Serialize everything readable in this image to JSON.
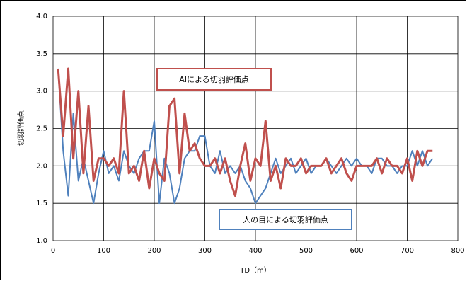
{
  "chart_data": {
    "type": "line",
    "x_label": "TD（m）",
    "y_label": "切羽評価点",
    "xlim": [
      0,
      800
    ],
    "xticks": [
      0,
      100,
      200,
      300,
      400,
      500,
      600,
      700,
      800
    ],
    "ylim": [
      1.0,
      4.0
    ],
    "yticks": [
      {
        "value": 1.0,
        "label": "1.0"
      },
      1.5,
      {
        "value": 2.0,
        "label": "2.0"
      },
      2.5,
      {
        "value": 3.0,
        "label": "3.0"
      },
      3.5,
      {
        "value": 4.0,
        "label": "4.0"
      }
    ],
    "grid": true,
    "x": [
      10,
      20,
      30,
      40,
      50,
      60,
      70,
      80,
      90,
      100,
      110,
      120,
      130,
      140,
      150,
      160,
      170,
      180,
      190,
      200,
      210,
      220,
      230,
      240,
      250,
      260,
      270,
      280,
      290,
      300,
      310,
      320,
      330,
      340,
      350,
      360,
      370,
      380,
      390,
      400,
      410,
      420,
      430,
      440,
      450,
      460,
      470,
      480,
      490,
      500,
      510,
      520,
      530,
      540,
      550,
      560,
      570,
      580,
      590,
      600,
      610,
      620,
      630,
      640,
      650,
      660,
      670,
      680,
      690,
      700,
      710,
      720,
      730,
      740,
      750
    ],
    "series": [
      {
        "color": "#4f81bd",
        "values": [
          3.3,
          2.2,
          1.6,
          2.7,
          1.8,
          2.1,
          1.8,
          1.5,
          1.9,
          2.2,
          1.9,
          2.0,
          1.8,
          2.2,
          2.0,
          1.9,
          2.1,
          2.2,
          2.2,
          2.6,
          1.5,
          2.1,
          1.9,
          1.5,
          1.7,
          2.1,
          2.2,
          2.2,
          2.4,
          2.4,
          2.0,
          1.9,
          2.2,
          1.9,
          2.0,
          1.9,
          2.0,
          1.8,
          1.7,
          1.5,
          1.6,
          1.7,
          1.9,
          2.1,
          1.9,
          2.0,
          2.1,
          1.9,
          2.0,
          2.1,
          1.9,
          2.0,
          2.0,
          2.1,
          2.0,
          1.9,
          2.0,
          2.1,
          2.0,
          2.1,
          2.0,
          2.0,
          1.9,
          2.1,
          2.1,
          2.0,
          2.0,
          1.9,
          2.0,
          2.0,
          2.2,
          2.0,
          2.2,
          2.0,
          2.1
        ]
      },
      {
        "color": "#c0504d",
        "values": [
          3.3,
          2.4,
          3.3,
          2.1,
          3.0,
          1.9,
          2.8,
          1.8,
          2.1,
          2.1,
          2.0,
          2.1,
          1.9,
          3.0,
          1.9,
          2.0,
          1.8,
          2.2,
          1.7,
          2.1,
          1.9,
          1.8,
          2.8,
          2.9,
          1.9,
          2.7,
          2.2,
          2.3,
          2.1,
          2.0,
          2.0,
          2.1,
          1.9,
          2.1,
          1.8,
          1.6,
          2.0,
          2.3,
          1.8,
          2.1,
          2.0,
          2.6,
          1.8,
          2.0,
          1.7,
          2.1,
          2.0,
          2.0,
          2.1,
          1.9,
          2.0,
          2.0,
          2.0,
          2.1,
          1.9,
          2.0,
          2.1,
          1.9,
          1.8,
          2.0,
          2.0,
          2.0,
          2.0,
          2.1,
          1.9,
          2.1,
          2.0,
          2.0,
          1.9,
          2.1,
          1.8,
          2.2,
          2.0,
          2.2,
          2.2
        ]
      }
    ],
    "annotations": [
      {
        "text": "AIによる切羽評価点",
        "color": "#c0504d"
      },
      {
        "text": "人の目による切羽評価点",
        "color": "#4f81bd"
      }
    ]
  }
}
